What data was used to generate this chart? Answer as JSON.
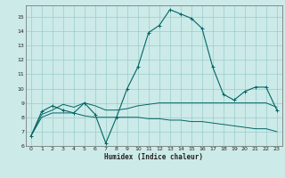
{
  "xlabel": "Humidex (Indice chaleur)",
  "bg_color": "#cceae8",
  "grid_color": "#99cccc",
  "line_color": "#006666",
  "xlim": [
    -0.5,
    23.5
  ],
  "ylim": [
    6,
    15.8
  ],
  "yticks": [
    6,
    7,
    8,
    9,
    10,
    11,
    12,
    13,
    14,
    15
  ],
  "xticks": [
    0,
    1,
    2,
    3,
    4,
    5,
    6,
    7,
    8,
    9,
    10,
    11,
    12,
    13,
    14,
    15,
    16,
    17,
    18,
    19,
    20,
    21,
    22,
    23
  ],
  "line1_x": [
    0,
    1,
    2,
    3,
    4,
    5,
    6,
    7,
    8,
    9,
    10,
    11,
    12,
    13,
    14,
    15,
    16,
    17,
    18,
    19,
    20,
    21,
    22,
    23
  ],
  "line1_y": [
    6.7,
    8.4,
    8.8,
    8.5,
    8.3,
    9.0,
    8.2,
    6.2,
    8.0,
    10.0,
    11.5,
    13.9,
    14.4,
    15.5,
    15.2,
    14.9,
    14.2,
    11.5,
    9.6,
    9.2,
    9.8,
    10.1,
    10.1,
    8.5
  ],
  "line2_x": [
    0,
    1,
    2,
    3,
    4,
    5,
    6,
    7,
    8,
    9,
    10,
    11,
    12,
    13,
    14,
    15,
    16,
    17,
    18,
    19,
    20,
    21,
    22,
    23
  ],
  "line2_y": [
    6.7,
    8.2,
    8.5,
    8.9,
    8.7,
    9.0,
    8.8,
    8.5,
    8.5,
    8.6,
    8.8,
    8.9,
    9.0,
    9.0,
    9.0,
    9.0,
    9.0,
    9.0,
    9.0,
    9.0,
    9.0,
    9.0,
    9.0,
    8.7
  ],
  "line3_x": [
    0,
    1,
    2,
    3,
    4,
    5,
    6,
    7,
    8,
    9,
    10,
    11,
    12,
    13,
    14,
    15,
    16,
    17,
    18,
    19,
    20,
    21,
    22,
    23
  ],
  "line3_y": [
    6.7,
    8.0,
    8.3,
    8.3,
    8.3,
    8.1,
    8.0,
    8.0,
    8.0,
    8.0,
    8.0,
    7.9,
    7.9,
    7.8,
    7.8,
    7.7,
    7.7,
    7.6,
    7.5,
    7.4,
    7.3,
    7.2,
    7.2,
    7.0
  ]
}
